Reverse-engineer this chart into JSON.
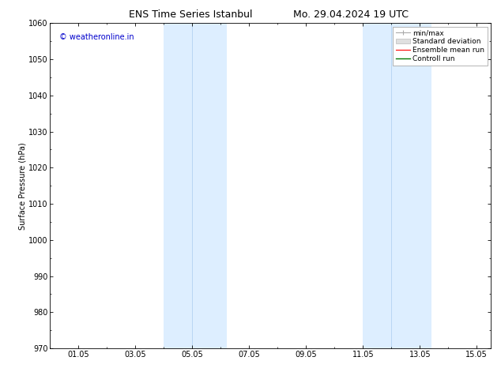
{
  "title_left": "ENS Time Series Istanbul",
  "title_right": "Mo. 29.04.2024 19 UTC",
  "ylabel": "Surface Pressure (hPa)",
  "ylim": [
    970,
    1060
  ],
  "yticks": [
    970,
    980,
    990,
    1000,
    1010,
    1020,
    1030,
    1040,
    1050,
    1060
  ],
  "xtick_labels": [
    "01.05",
    "03.05",
    "05.05",
    "07.05",
    "09.05",
    "11.05",
    "13.05",
    "15.05"
  ],
  "xtick_positions": [
    1.0,
    3.0,
    5.0,
    7.0,
    9.0,
    11.0,
    13.0,
    15.0
  ],
  "xlim": [
    0.0,
    15.5
  ],
  "shade_bands": [
    {
      "xmin": 4.0,
      "xmax": 4.9,
      "xdiv": 4.45
    },
    {
      "xmin": 5.1,
      "xmax": 6.2,
      "xdiv": null
    },
    {
      "xmin": 11.1,
      "xmax": 12.0,
      "xdiv": 11.55
    },
    {
      "xmin": 12.2,
      "xmax": 13.4,
      "xdiv": null
    }
  ],
  "shade_color": "#ddeeff",
  "shade_divider_color": "#aaccee",
  "watermark": "© weatheronline.in",
  "watermark_color": "#0000cc",
  "legend_labels": [
    "min/max",
    "Standard deviation",
    "Ensemble mean run",
    "Controll run"
  ],
  "legend_colors": [
    "#aaaaaa",
    "#cccccc",
    "#ff0000",
    "#007700"
  ],
  "background_color": "#ffffff",
  "title_fontsize": 9,
  "axis_fontsize": 7,
  "tick_fontsize": 7,
  "watermark_fontsize": 7,
  "legend_fontsize": 6.5
}
